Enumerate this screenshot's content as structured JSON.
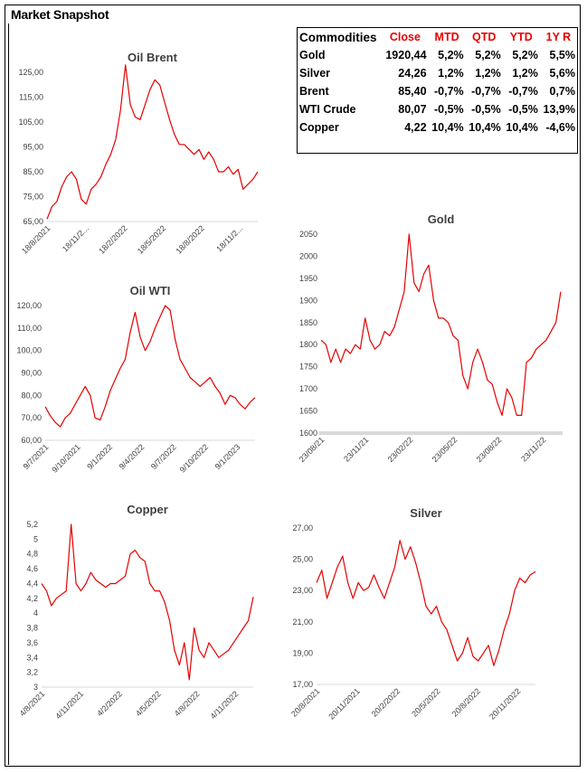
{
  "page": {
    "title": "Market Snapshot"
  },
  "table": {
    "headers": [
      "Commodities",
      "Close",
      "MTD",
      "QTD",
      "YTD",
      "1Y R"
    ],
    "rows": [
      {
        "name": "Gold",
        "close": "1920,44",
        "mtd": "5,2%",
        "qtd": "5,2%",
        "ytd": "5,2%",
        "y1": "5,5%"
      },
      {
        "name": "Silver",
        "close": "24,26",
        "mtd": "1,2%",
        "qtd": "1,2%",
        "ytd": "1,2%",
        "y1": "5,6%"
      },
      {
        "name": "Brent",
        "close": "85,40",
        "mtd": "-0,7%",
        "qtd": "-0,7%",
        "ytd": "-0,7%",
        "y1": "0,7%"
      },
      {
        "name": "WTI Crude",
        "close": "80,07",
        "mtd": "-0,5%",
        "qtd": "-0,5%",
        "ytd": "-0,5%",
        "y1": "13,9%"
      },
      {
        "name": "Copper",
        "close": "4,22",
        "mtd": "10,4%",
        "qtd": "10,4%",
        "ytd": "10,4%",
        "y1": "-4,6%"
      }
    ]
  },
  "colors": {
    "line": "#e60000",
    "accent": "#e60000",
    "axis_band": "#d9d9d9"
  },
  "chart_data": [
    {
      "id": "brent",
      "type": "line",
      "title": "Oil Brent",
      "ylim": [
        65,
        125
      ],
      "yticks": [
        "65,00",
        "75,00",
        "85,00",
        "95,00",
        "105,00",
        "115,00",
        "125,00"
      ],
      "xticks": [
        "18/8/2021",
        "18/11/2...",
        "18/2/2022",
        "18/5/2022",
        "18/8/2022",
        "18/11/2..."
      ],
      "series": [
        {
          "values": [
            66,
            71,
            73,
            79,
            83,
            85,
            82,
            74,
            72,
            78,
            80,
            83,
            88,
            92,
            98,
            110,
            128,
            112,
            107,
            106,
            112,
            118,
            122,
            120,
            113,
            106,
            100,
            96,
            96,
            94,
            92,
            94,
            90,
            93,
            90,
            85,
            85,
            87,
            84,
            86,
            78,
            80,
            82,
            85
          ]
        }
      ]
    },
    {
      "id": "wti",
      "type": "line",
      "title": "Oil WTI",
      "ylim": [
        60,
        120
      ],
      "yticks": [
        "60,00",
        "70,00",
        "80,00",
        "90,00",
        "100,00",
        "110,00",
        "120,00"
      ],
      "xticks": [
        "9/7/2021",
        "9/10/2021",
        "9/1/2022",
        "9/4/2022",
        "9/7/2022",
        "9/10/2022",
        "9/1/2023"
      ],
      "series": [
        {
          "values": [
            75,
            71,
            68,
            66,
            70,
            72,
            76,
            80,
            84,
            80,
            70,
            69,
            75,
            82,
            87,
            92,
            96,
            108,
            117,
            106,
            100,
            104,
            110,
            115,
            120,
            118,
            105,
            96,
            92,
            88,
            86,
            84,
            86,
            88,
            84,
            81,
            76,
            80,
            79,
            76,
            74,
            77,
            79
          ]
        }
      ]
    },
    {
      "id": "gold",
      "type": "line",
      "title": "Gold",
      "ylim": [
        1600,
        2050
      ],
      "yticks": [
        "1600",
        "1650",
        "1700",
        "1750",
        "1800",
        "1850",
        "1900",
        "1950",
        "2000",
        "2050"
      ],
      "xticks": [
        "23/08/21",
        "23/11/21",
        "23/02/22",
        "23/05/22",
        "23/08/22",
        "23/11/22"
      ],
      "series": [
        {
          "values": [
            1810,
            1800,
            1760,
            1790,
            1760,
            1790,
            1780,
            1800,
            1790,
            1860,
            1810,
            1790,
            1800,
            1830,
            1820,
            1840,
            1880,
            1920,
            2050,
            1940,
            1920,
            1960,
            1980,
            1900,
            1860,
            1860,
            1850,
            1820,
            1810,
            1730,
            1700,
            1760,
            1790,
            1760,
            1720,
            1710,
            1670,
            1640,
            1700,
            1680,
            1640,
            1640,
            1760,
            1770,
            1790,
            1800,
            1810,
            1830,
            1850,
            1920
          ]
        }
      ]
    },
    {
      "id": "copper",
      "type": "line",
      "title": "Copper",
      "ylim": [
        3,
        5.2
      ],
      "yticks": [
        "3",
        "3,2",
        "3,4",
        "3,6",
        "3,8",
        "4",
        "4,2",
        "4,4",
        "4,6",
        "4,8",
        "5",
        "5,2"
      ],
      "xticks": [
        "4/8/2021",
        "4/11/2021",
        "4/2/2022",
        "4/5/2022",
        "4/8/2022",
        "4/11/2022"
      ],
      "series": [
        {
          "values": [
            4.4,
            4.3,
            4.1,
            4.2,
            4.25,
            4.3,
            5.2,
            4.4,
            4.3,
            4.4,
            4.55,
            4.45,
            4.4,
            4.35,
            4.4,
            4.4,
            4.45,
            4.5,
            4.8,
            4.85,
            4.75,
            4.7,
            4.4,
            4.3,
            4.3,
            4.15,
            3.9,
            3.5,
            3.3,
            3.6,
            3.1,
            3.8,
            3.5,
            3.4,
            3.6,
            3.5,
            3.4,
            3.45,
            3.5,
            3.6,
            3.7,
            3.8,
            3.9,
            4.22
          ]
        }
      ]
    },
    {
      "id": "silver",
      "type": "line",
      "title": "Silver",
      "ylim": [
        17,
        27
      ],
      "yticks": [
        "17,00",
        "19,00",
        "21,00",
        "23,00",
        "25,00",
        "27,00"
      ],
      "xticks": [
        "20/8/2021",
        "20/11/2021",
        "20/2/2022",
        "20/5/2022",
        "20/8/2022",
        "20/11/2022"
      ],
      "series": [
        {
          "values": [
            23.5,
            24.3,
            22.5,
            23.5,
            24.5,
            25.2,
            23.5,
            22.5,
            23.5,
            23,
            23.2,
            24,
            23.2,
            22.5,
            23.5,
            24.5,
            26.2,
            25,
            25.8,
            24.8,
            23.5,
            22,
            21.5,
            22,
            21,
            20.5,
            19.5,
            18.5,
            19,
            20,
            18.8,
            18.5,
            19,
            19.5,
            18.2,
            19.2,
            20.5,
            21.5,
            23,
            23.8,
            23.5,
            24,
            24.2
          ]
        }
      ]
    }
  ]
}
